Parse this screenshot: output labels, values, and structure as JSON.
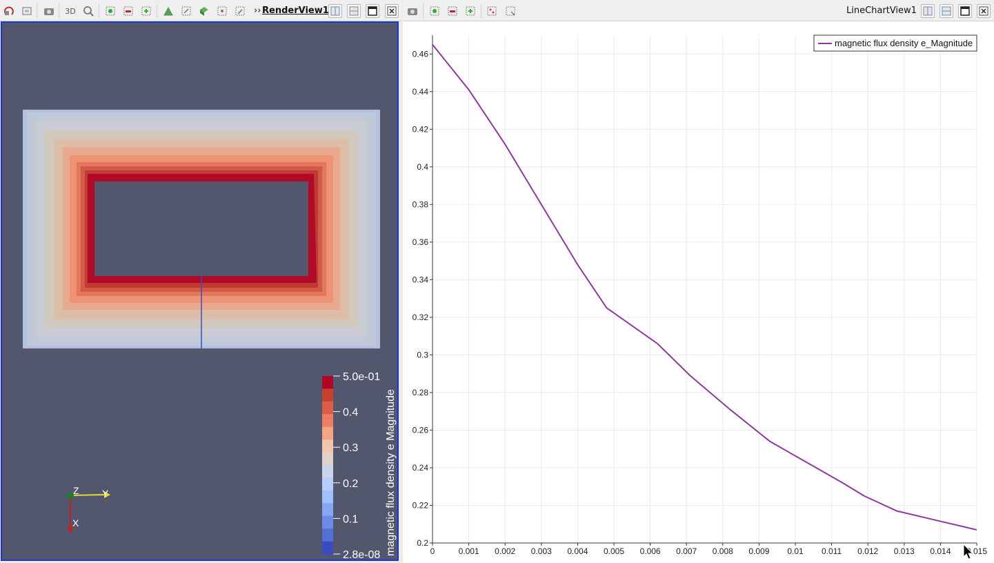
{
  "render_view": {
    "title": "RenderView1",
    "toolbar": {
      "mode_3d_label": "3D",
      "more_glyph": "››",
      "icons": [
        "reset-camera-icon",
        "zoom-to-data-icon",
        "camera-icon",
        "zoom-box-icon",
        "select-points-icon",
        "deselect-icon",
        "select-cells-icon",
        "interactive-select-icon",
        "select-frustum-icon",
        "select-block-icon",
        "grow-selection-icon",
        "shrink-selection-icon"
      ]
    },
    "colorbar": {
      "title": "magnetic flux density e Magnitude",
      "tick_labels": [
        "5.0e-01",
        "0.4",
        "0.3",
        "0.2",
        "0.1",
        "2.8e-08"
      ],
      "colors": [
        "#b40426",
        "#c7412f",
        "#dc5d4a",
        "#ec7f63",
        "#f4a384",
        "#f2c4ac",
        "#e0d2c8",
        "#c9d6e8",
        "#b6cdfa",
        "#9fbfff",
        "#86a6f5",
        "#6d8ae8",
        "#5570d4",
        "#3b4cc0"
      ]
    },
    "axes": {
      "z_label": "Z",
      "y_label": "Y",
      "x_label": "X"
    },
    "background": "#52576e"
  },
  "chart_view": {
    "title": "LineChartView1",
    "chart_data": {
      "type": "line",
      "title": "",
      "xlabel": "",
      "ylabel": "",
      "xlim": [
        0,
        0.015
      ],
      "ylim": [
        0.2,
        0.47
      ],
      "x_ticks": [
        0,
        0.001,
        0.002,
        0.003,
        0.004,
        0.005,
        0.006,
        0.007,
        0.008,
        0.009,
        0.01,
        0.011,
        0.012,
        0.013,
        0.014,
        0.015
      ],
      "x_tick_labels": [
        "0",
        "0.001",
        "0.002",
        "0.003",
        "0.004",
        "0.005",
        "0.006",
        "0.007",
        "0.008",
        "0.009",
        "0.01",
        "0.011",
        "0.012",
        "0.013",
        "0.014",
        "0.015"
      ],
      "y_ticks": [
        0.2,
        0.22,
        0.24,
        0.26,
        0.28,
        0.3,
        0.32,
        0.34,
        0.36,
        0.38,
        0.4,
        0.42,
        0.44,
        0.46
      ],
      "y_tick_labels": [
        "0.2",
        "0.22",
        "0.24",
        "0.26",
        "0.28",
        "0.3",
        "0.32",
        "0.34",
        "0.36",
        "0.38",
        "0.4",
        "0.42",
        "0.44",
        "0.46"
      ],
      "grid": true,
      "legend_position": "top-right",
      "series": [
        {
          "name": "magnetic flux density e_Magnitude",
          "color": "#8a3a9c",
          "x": [
            0,
            0.001,
            0.002,
            0.003,
            0.004,
            0.0048,
            0.0062,
            0.0071,
            0.0082,
            0.0093,
            0.0103,
            0.0113,
            0.0119,
            0.0128,
            0.0139,
            0.015
          ],
          "y": [
            0.465,
            0.441,
            0.412,
            0.38,
            0.348,
            0.325,
            0.306,
            0.289,
            0.271,
            0.254,
            0.243,
            0.232,
            0.225,
            0.217,
            0.212,
            0.207
          ]
        }
      ]
    }
  }
}
